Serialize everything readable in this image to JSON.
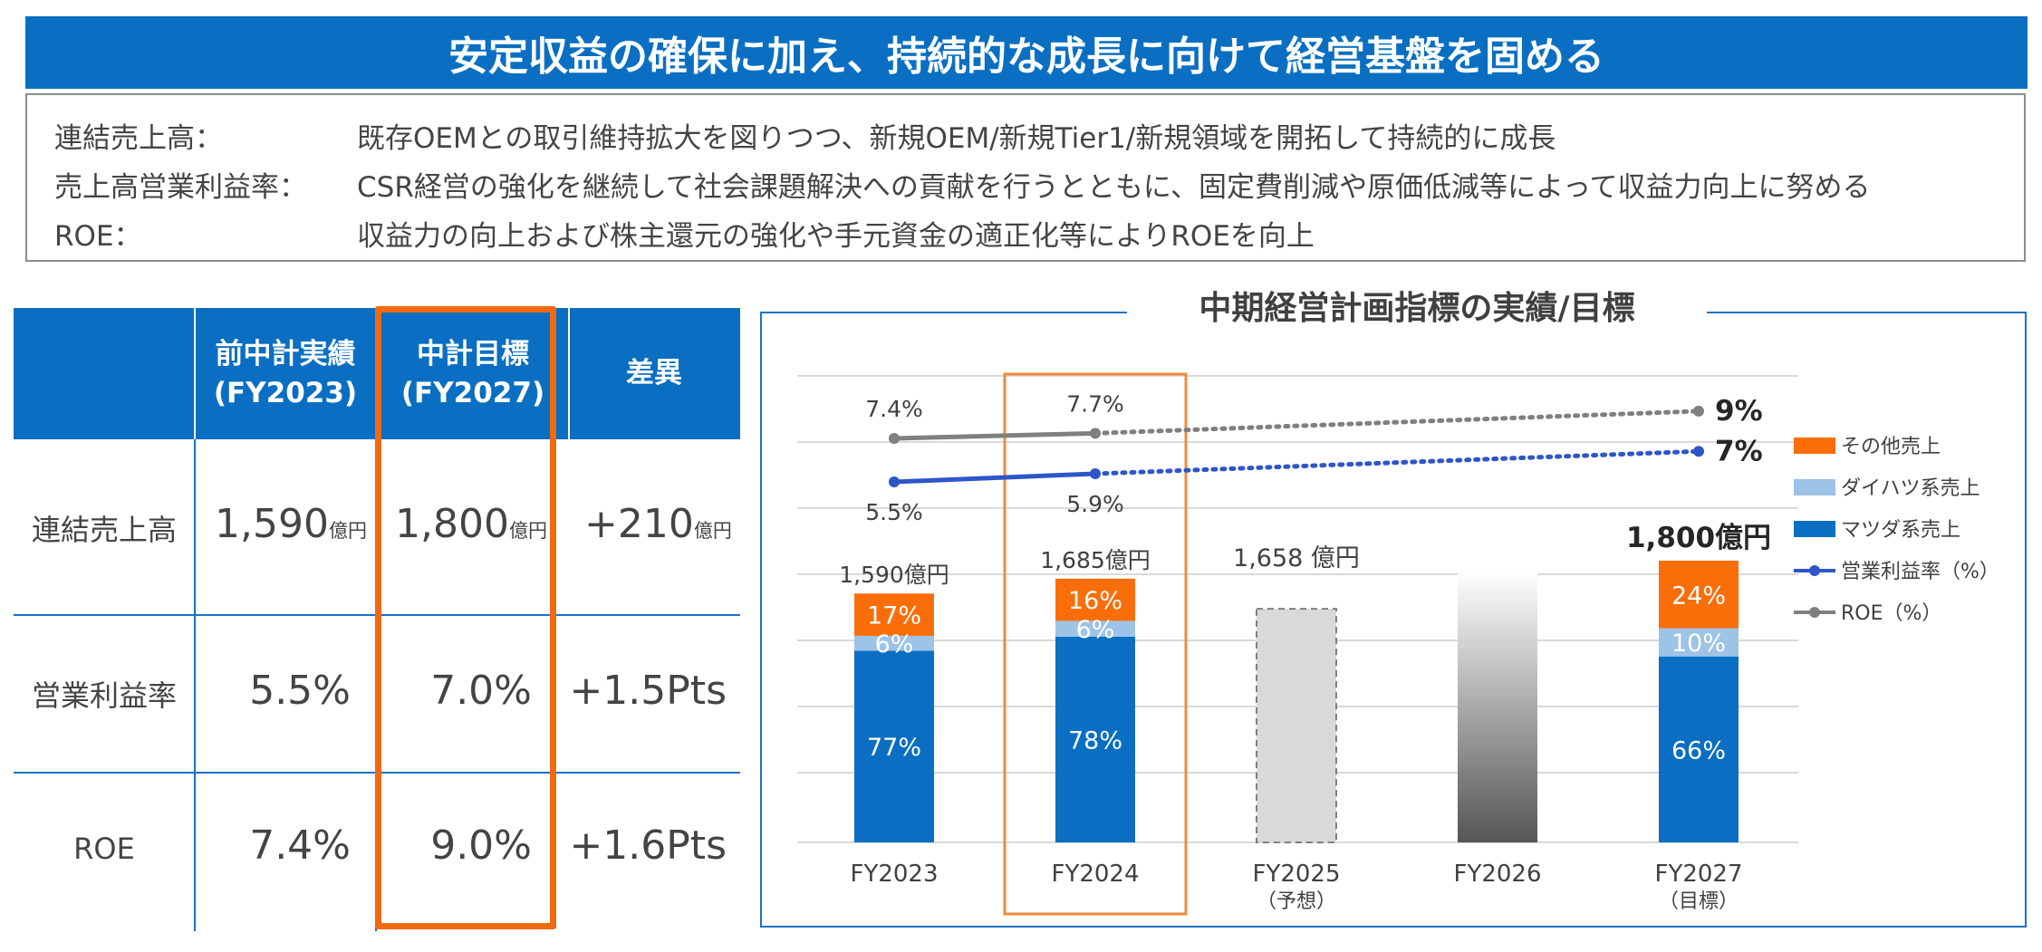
{
  "banner": {
    "title": "安定収益の確保に加え、持続的な成長に向けて経営基盤を固める"
  },
  "policy": [
    {
      "label": "連結売上高：",
      "text": "既存OEMとの取引維持拡大を図りつつ、新規OEM/新規Tier1/新規領域を開拓して持続的に成長"
    },
    {
      "label": "売上高営業利益率：",
      "text": "CSR経営の強化を継続して社会課題解決への貢献を行うとともに、固定費削減や原価低減等によって収益力向上に努める"
    },
    {
      "label": "ROE：",
      "text": "収益力の向上および株主還元の強化や手元資金の適正化等によりROEを向上"
    }
  ],
  "table": {
    "headers": [
      "",
      "前中計実績\n(FY2023)",
      "中計目標\n(FY2027)",
      "差異"
    ],
    "rows": [
      {
        "label": "連結売上高",
        "fy2023": "1,590",
        "fy2027": "1,800",
        "diff": "+210",
        "unit": "億円"
      },
      {
        "label": "営業利益率",
        "fy2023": "5.5%",
        "fy2027": "7.0%",
        "diff": "+1.5Pts",
        "unit": ""
      },
      {
        "label": "ROE",
        "fy2023": "7.4%",
        "fy2027": "9.0%",
        "diff": "+1.6Pts",
        "unit": ""
      }
    ],
    "highlight_color": "#f06a14"
  },
  "chart_data": {
    "type": "bar",
    "title": "中期経営計画指標の実績/目標",
    "categories": [
      "FY2023",
      "FY2024",
      "FY2025",
      "FY2026",
      "FY2027"
    ],
    "category_sublabels": [
      "",
      "",
      "（予想）",
      "",
      "（目標）"
    ],
    "totals": [
      1590,
      1685,
      1658,
      null,
      1800
    ],
    "total_labels": [
      "1,590億円",
      "1,685億円",
      "1,658 億円",
      "",
      "1,800億円"
    ],
    "series": [
      {
        "name": "マツダ系売上",
        "color": "#0a6fc2",
        "values": [
          77,
          78,
          null,
          null,
          66
        ],
        "labels": [
          "77%",
          "78%",
          "",
          "",
          "66%"
        ]
      },
      {
        "name": "ダイハツ系売上",
        "color": "#9dc3e6",
        "values": [
          6,
          6,
          null,
          null,
          10
        ],
        "labels": [
          "6%",
          "6%",
          "",
          "",
          "10%"
        ]
      },
      {
        "name": "その他売上",
        "color": "#fa6e0a",
        "values": [
          17,
          16,
          null,
          null,
          24
        ],
        "labels": [
          "17%",
          "16%",
          "",
          "",
          "24%"
        ]
      }
    ],
    "forecast_bar": {
      "category": "FY2025",
      "value": 1658,
      "color": "#d9d9d9"
    },
    "lines": [
      {
        "name": "営業利益率（%）",
        "color": "#2e55c9",
        "values": [
          5.5,
          5.9,
          null,
          null,
          7
        ],
        "labels": [
          "5.5%",
          "5.9%",
          "",
          "",
          "7%"
        ]
      },
      {
        "name": "ROE（%）",
        "color": "#7f7f7f",
        "values": [
          7.4,
          7.7,
          null,
          null,
          9
        ],
        "labels": [
          "7.4%",
          "7.7%",
          "",
          "",
          "9%"
        ]
      }
    ],
    "legend": [
      "その他売上",
      "ダイハツ系売上",
      "マツダ系売上",
      "営業利益率（%）",
      "ROE（%）"
    ],
    "legend_position": "right",
    "highlight_category": "FY2024",
    "grid": true
  }
}
